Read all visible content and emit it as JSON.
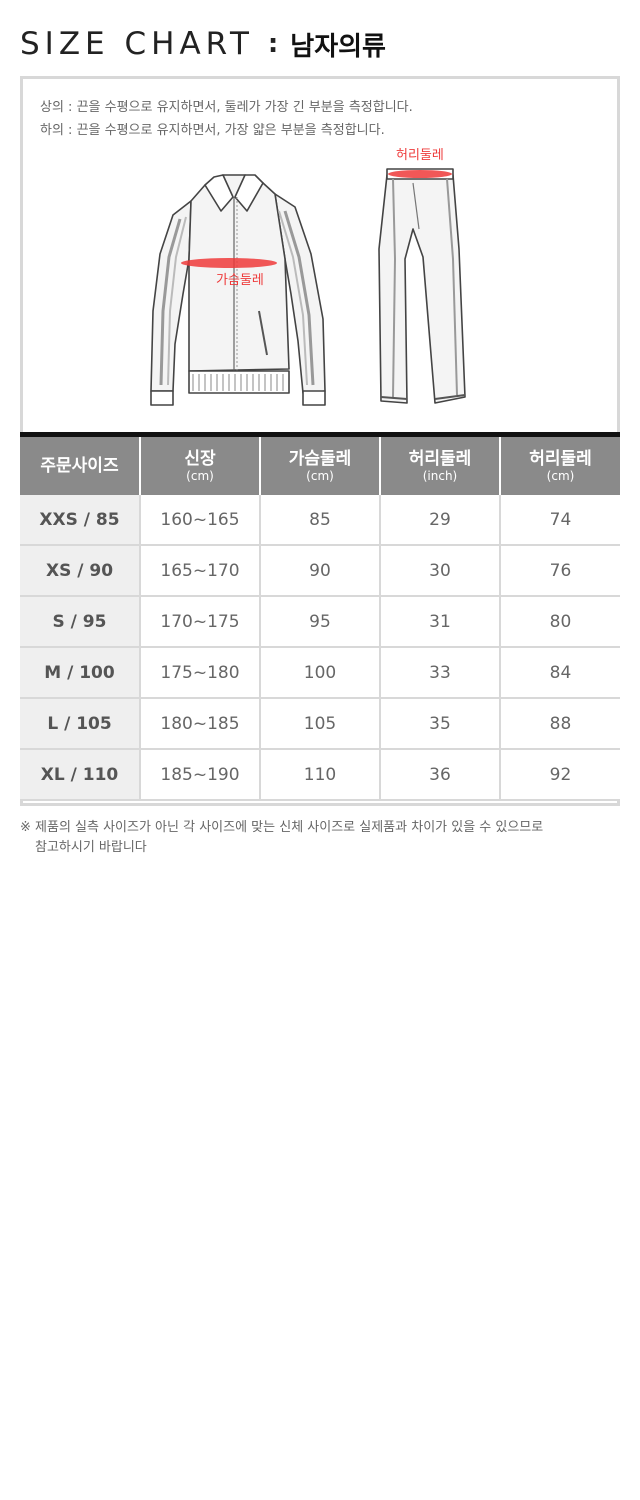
{
  "header": {
    "title_en": "SIZE CHART",
    "separator": ":",
    "title_ko": "남자의류"
  },
  "guide": {
    "notes": [
      "상의 : 끈을 수평으로 유지하면서, 둘레가 가장 긴 부분을 측정합니다.",
      "하의 : 끈을 수평으로 유지하면서, 가장 얇은 부분을 측정합니다."
    ],
    "jacket_label": "가슴둘레",
    "pants_label": "허리둘레",
    "accent_color": "#ee3a3a"
  },
  "table": {
    "headers": [
      {
        "label": "주문사이즈",
        "unit": ""
      },
      {
        "label": "신장",
        "unit": "(cm)"
      },
      {
        "label": "가슴둘레",
        "unit": "(cm)"
      },
      {
        "label": "허리둘레",
        "unit": "(inch)"
      },
      {
        "label": "허리둘레",
        "unit": "(cm)"
      }
    ],
    "rows": [
      [
        "XXS / 85",
        "160~165",
        "85",
        "29",
        "74"
      ],
      [
        "XS / 90",
        "165~170",
        "90",
        "30",
        "76"
      ],
      [
        "S / 95",
        "170~175",
        "95",
        "31",
        "80"
      ],
      [
        "M / 100",
        "175~180",
        "100",
        "33",
        "84"
      ],
      [
        "L / 105",
        "180~185",
        "105",
        "35",
        "88"
      ],
      [
        "XL / 110",
        "185~190",
        "110",
        "36",
        "92"
      ]
    ]
  },
  "footnote": {
    "line1": "※ 제품의 실측 사이즈가 아닌 각 사이즈에 맞는 신체 사이즈로 실제품과 차이가 있을 수 있으므로",
    "line2": "참고하시기 바랍니다"
  }
}
